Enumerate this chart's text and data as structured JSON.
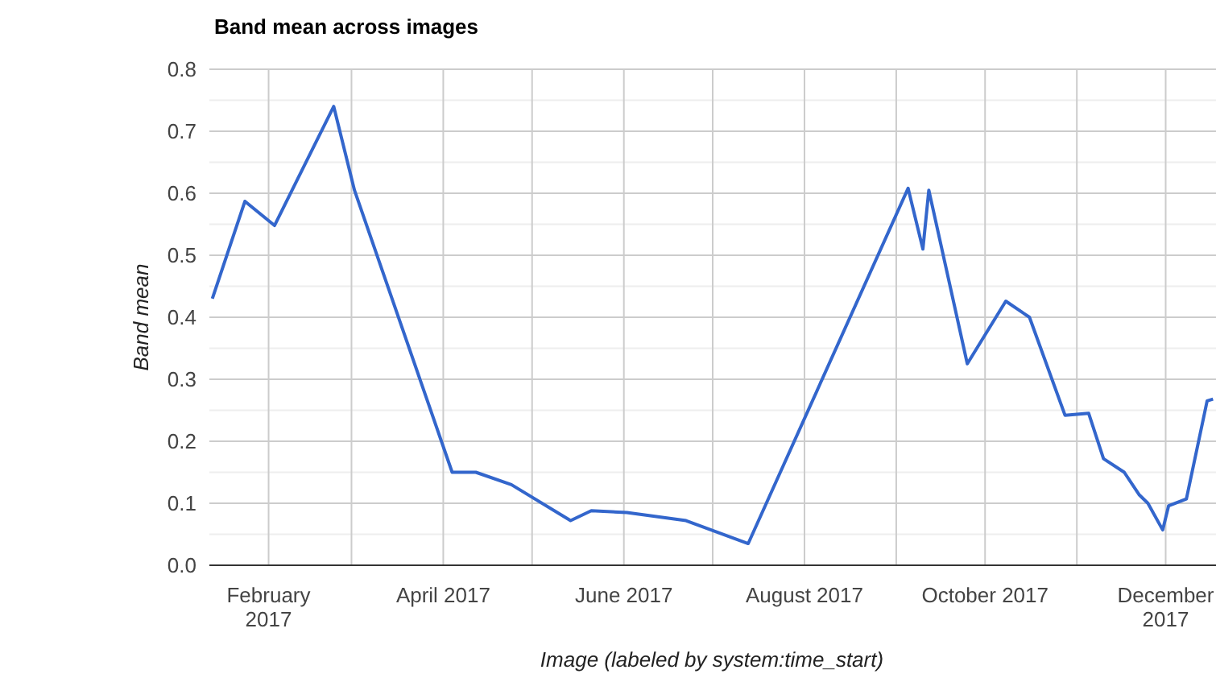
{
  "chart_data": {
    "type": "line",
    "title": "Band mean across images",
    "xlabel": "Image (labeled by system:time_start)",
    "ylabel": "Band mean",
    "x": [
      "2017-01-13",
      "2017-01-24",
      "2017-02-03",
      "2017-02-23",
      "2017-03-02",
      "2017-04-04",
      "2017-04-12",
      "2017-04-24",
      "2017-05-14",
      "2017-05-21",
      "2017-06-02",
      "2017-06-22",
      "2017-07-13",
      "2017-09-05",
      "2017-09-10",
      "2017-09-12",
      "2017-09-25",
      "2017-10-08",
      "2017-10-16",
      "2017-10-28",
      "2017-11-05",
      "2017-11-10",
      "2017-11-17",
      "2017-11-22",
      "2017-11-25",
      "2017-11-30",
      "2017-12-02",
      "2017-12-08",
      "2017-12-15",
      "2017-12-17"
    ],
    "series": [
      {
        "color": "#3366cc",
        "values": [
          0.43,
          0.587,
          0.548,
          0.74,
          0.605,
          0.15,
          0.15,
          0.13,
          0.072,
          0.088,
          0.085,
          0.072,
          0.035,
          0.608,
          0.51,
          0.605,
          0.325,
          0.426,
          0.4,
          0.242,
          0.245,
          0.172,
          0.15,
          0.114,
          0.1,
          0.057,
          0.096,
          0.107,
          0.265,
          0.268
        ]
      }
    ],
    "xlim": [
      "2017-01-12",
      "2017-12-18"
    ],
    "xticks": [
      {
        "value": "2017-02-01",
        "label": "February\n2017"
      },
      {
        "value": "2017-03-01",
        "label": null
      },
      {
        "value": "2017-04-01",
        "label": "April 2017"
      },
      {
        "value": "2017-05-01",
        "label": null
      },
      {
        "value": "2017-06-01",
        "label": "June 2017"
      },
      {
        "value": "2017-07-01",
        "label": null
      },
      {
        "value": "2017-08-01",
        "label": "August 2017"
      },
      {
        "value": "2017-09-01",
        "label": null
      },
      {
        "value": "2017-10-01",
        "label": "October 2017"
      },
      {
        "value": "2017-11-01",
        "label": null
      },
      {
        "value": "2017-12-01",
        "label": "December\n2017"
      }
    ],
    "ylim": [
      0,
      0.8
    ],
    "yticks": [
      {
        "value": 0,
        "label": "0.0"
      },
      {
        "value": 0.05,
        "label": null
      },
      0.1,
      {
        "value": 0.15,
        "label": null
      },
      0.2,
      {
        "value": 0.25,
        "label": null
      },
      0.3,
      {
        "value": 0.35,
        "label": null
      },
      0.4,
      {
        "value": 0.45,
        "label": null
      },
      0.5,
      {
        "value": 0.55,
        "label": null
      },
      0.6,
      {
        "value": 0.65,
        "label": null
      },
      0.7,
      {
        "value": 0.75,
        "label": null
      },
      0.8
    ],
    "grid": true,
    "marker": "none",
    "line_style": "solid"
  }
}
